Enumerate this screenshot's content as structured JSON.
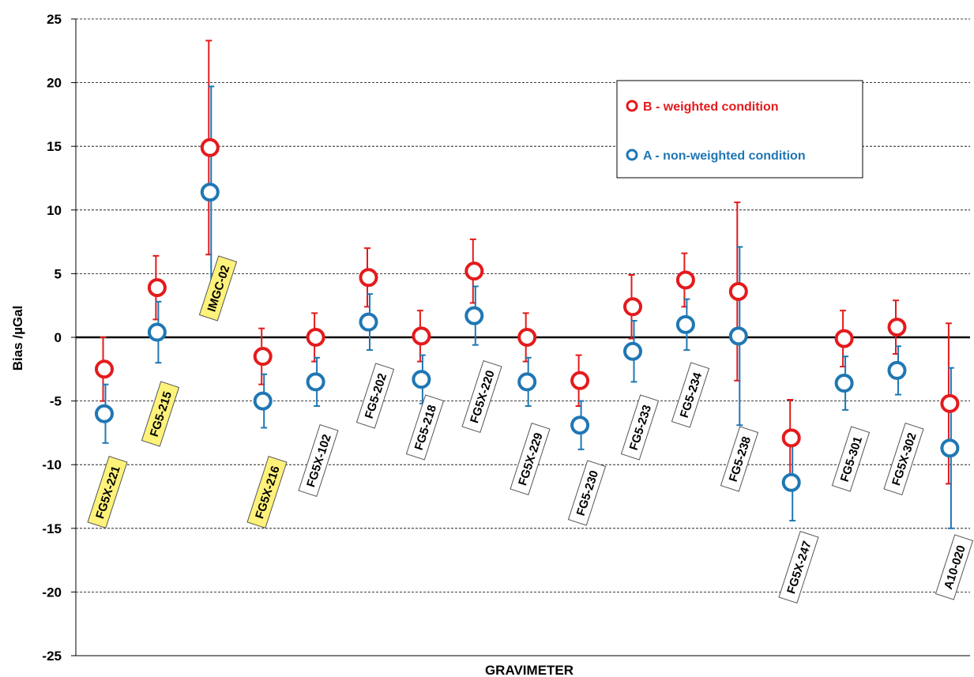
{
  "chart_data": {
    "type": "scatter",
    "title": "",
    "xlabel": "GRAVIMETER",
    "ylabel": "Bias /µGal",
    "ylim": [
      -25,
      25
    ],
    "yticks": [
      -25,
      -20,
      -15,
      -10,
      -5,
      0,
      5,
      10,
      15,
      20,
      25
    ],
    "grid": "horizontal dashed",
    "legend_position": "top-right",
    "categories": [
      "FG5X-221",
      "FG5-215",
      "IMGC-02",
      "FG5X-216",
      "FG5X-102",
      "FG5-202",
      "FG5-218",
      "FG5X-220",
      "FG5X-229",
      "FG5-230",
      "FG5-233",
      "FG5-234",
      "FG5-238",
      "FG5X-247",
      "FG5-301",
      "FG5X-302",
      "A10-020"
    ],
    "highlighted": [
      "FG5X-221",
      "FG5-215",
      "IMGC-02",
      "FG5X-216"
    ],
    "series": [
      {
        "name": "B - weighted condition",
        "color": "#e41a1c",
        "values": [
          -2.5,
          3.9,
          14.9,
          -1.5,
          0.0,
          4.7,
          0.1,
          5.2,
          0.0,
          -3.4,
          2.4,
          4.5,
          3.6,
          -7.9,
          -0.1,
          0.8,
          -5.2
        ],
        "errors": [
          2.5,
          2.5,
          8.4,
          2.2,
          1.9,
          2.3,
          2.0,
          2.5,
          1.9,
          2.0,
          2.5,
          2.1,
          7.0,
          3.0,
          2.2,
          2.1,
          6.3
        ]
      },
      {
        "name": "A - non-weighted condition",
        "color": "#1f77b4",
        "values": [
          -6.0,
          0.4,
          11.4,
          -5.0,
          -3.5,
          1.2,
          -3.3,
          1.7,
          -3.5,
          -6.9,
          -1.1,
          1.0,
          0.1,
          -11.4,
          -3.6,
          -2.6,
          -8.7
        ],
        "errors": [
          2.3,
          2.4,
          8.3,
          2.1,
          1.9,
          2.2,
          1.9,
          2.3,
          1.9,
          1.9,
          2.4,
          2.0,
          7.0,
          3.0,
          2.1,
          1.9,
          6.3
        ]
      }
    ]
  }
}
